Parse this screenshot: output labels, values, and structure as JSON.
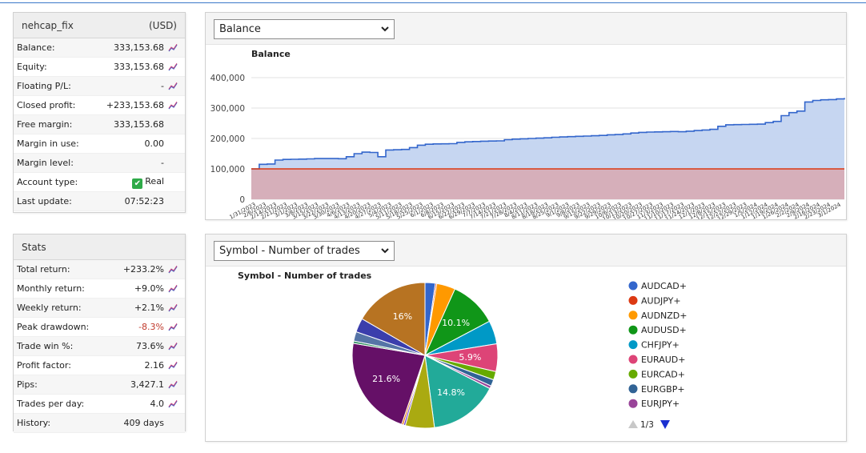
{
  "account": {
    "name": "nehcap_fix",
    "currency": "(USD)",
    "rows": [
      {
        "label": "Balance:",
        "value": "333,153.68",
        "icon": true
      },
      {
        "label": "Equity:",
        "value": "333,153.68",
        "icon": true
      },
      {
        "label": "Floating P/L:",
        "value": "-",
        "icon": true
      },
      {
        "label": "Closed profit:",
        "value": "+233,153.68",
        "icon": true
      },
      {
        "label": "Free margin:",
        "value": "333,153.68",
        "icon": false
      },
      {
        "label": "Margin in use:",
        "value": "0.00",
        "icon": false
      },
      {
        "label": "Margin level:",
        "value": "-",
        "icon": false
      },
      {
        "label": "Account type:",
        "value": "Real",
        "icon": false,
        "check": true
      },
      {
        "label": "Last update:",
        "value": "07:52:23",
        "icon": false
      }
    ]
  },
  "stats": {
    "title": "Stats",
    "rows": [
      {
        "label": "Total return:",
        "value": "+233.2%",
        "icon": true
      },
      {
        "label": "Monthly return:",
        "value": "+9.0%",
        "icon": true
      },
      {
        "label": "Weekly return:",
        "value": "+2.1%",
        "icon": true
      },
      {
        "label": "Peak drawdown:",
        "value": "-8.3%",
        "icon": true,
        "negative": true
      },
      {
        "label": "Trade win %:",
        "value": "73.6%",
        "icon": true
      },
      {
        "label": "Profit factor:",
        "value": "2.16",
        "icon": true
      },
      {
        "label": "Pips:",
        "value": "3,427.1",
        "icon": true
      },
      {
        "label": "Trades per day:",
        "value": "4.0",
        "icon": true
      },
      {
        "label": "History:",
        "value": "409 days",
        "icon": false
      }
    ]
  },
  "balance_panel": {
    "select_value": "Balance"
  },
  "pie_panel": {
    "select_value": "Symbol - Number of trades",
    "pager": "1/3"
  },
  "colors": {
    "balance_line": "#3366cc",
    "balance_fill": "#c3d4f0",
    "deposit_line": "#dc3912",
    "deposit_fill": "#d8a8b0"
  },
  "chart_data": [
    {
      "type": "area",
      "title": "Balance",
      "xlabel": "",
      "ylabel": "",
      "ylim": [
        0,
        400000
      ],
      "y_ticks": [
        "0",
        "100,000",
        "200,000",
        "300,000",
        "400,000"
      ],
      "grid": true,
      "x_tick_labels": [
        "1/31/2023",
        "2/6/2023",
        "2/14/2023",
        "2/21/2023",
        "3/1/2023",
        "3/8/2023",
        "3/15/2023",
        "3/22/2023",
        "3/30/2023",
        "4/6/2023",
        "4/13/2023",
        "4/20/2023",
        "4/27/2023",
        "5/4/2023",
        "5/11/2023",
        "5/18/2023",
        "5/25/2023",
        "6/1/2023",
        "6/8/2023",
        "6/15/2023",
        "6/22/2023",
        "6/29/2023",
        "7/7/2023",
        "7/14/2023",
        "7/21/2023",
        "7/28/2023",
        "8/4/2023",
        "8/11/2023",
        "8/18/2023",
        "8/25/2023",
        "9/1/2023",
        "9/8/2023",
        "9/15/2023",
        "9/22/2023",
        "9/29/2023",
        "10/6/2023",
        "10/13/2023",
        "10/20/2023",
        "10/27/2023",
        "11/3/2023",
        "11/10/2023",
        "11/17/2023",
        "11/24/2023",
        "12/1/2023",
        "12/8/2023",
        "12/15/2023",
        "12/22/2023",
        "12/29/2023",
        "1/5/2024",
        "1/12/2024",
        "1/19/2024",
        "1/26/2024",
        "2/2/2024",
        "2/9/2024",
        "2/16/2024",
        "2/23/2024",
        "3/1/2024"
      ],
      "series": [
        {
          "values": [
            100000,
            115000,
            116000,
            129000,
            131000,
            131500,
            132000,
            133000,
            134000,
            134000,
            134000,
            133500,
            140000,
            150000,
            155000,
            154000,
            140000,
            162000,
            163000,
            164000,
            170000,
            178000,
            181000,
            182000,
            182500,
            183000,
            187000,
            189000,
            190000,
            191000,
            191500,
            192000,
            196000,
            198000,
            199000,
            200000,
            201000,
            202000,
            204000,
            205000,
            206000,
            207000,
            208000,
            209000,
            210000,
            212000,
            213000,
            215000,
            218000,
            220000,
            221000,
            221500,
            222000,
            223000,
            222000,
            224000,
            226000,
            228000,
            230000,
            240000,
            245000,
            245500,
            246000,
            246500,
            247000,
            252000,
            256000,
            275000,
            285000,
            290000,
            320000,
            325000,
            327000,
            328000,
            330000,
            333153.68
          ]
        },
        {
          "values": [
            100000,
            100000
          ]
        }
      ]
    },
    {
      "type": "pie",
      "title": "Symbol - Number of trades",
      "legend": [
        "AUDCAD+",
        "AUDJPY+",
        "AUDNZD+",
        "AUDUSD+",
        "CHFJPY+",
        "EURAUD+",
        "EURCAD+",
        "EURGBP+",
        "EURJPY+"
      ],
      "slices": [
        {
          "label": "AUDCAD+",
          "value": 2.2,
          "color": "#3366cc"
        },
        {
          "label": "AUDJPY+",
          "value": 0.3,
          "color": "#dc3912"
        },
        {
          "label": "AUDNZD+",
          "value": 4.0,
          "color": "#ff9900"
        },
        {
          "label": "AUDUSD+",
          "value": 10.1,
          "color": "#109618",
          "text": "10.1%"
        },
        {
          "label": "CHFJPY+",
          "value": 5.0,
          "color": "#0099c6"
        },
        {
          "label": "EURAUD+",
          "value": 5.9,
          "color": "#dd4477",
          "text": "5.9%"
        },
        {
          "label": "EURCAD+",
          "value": 1.8,
          "color": "#66aa00"
        },
        {
          "label": "EURGBP+",
          "value": 1.4,
          "color": "#316395"
        },
        {
          "label": "EURJPY+",
          "value": 0.6,
          "color": "#994499"
        },
        {
          "label": "",
          "value": 14.8,
          "color": "#22aa99",
          "text": "14.8%"
        },
        {
          "label": "",
          "value": 6.2,
          "color": "#aaaa11"
        },
        {
          "label": "",
          "value": 0.4,
          "color": "#6633cc"
        },
        {
          "label": "",
          "value": 0.4,
          "color": "#e67300"
        },
        {
          "label": "",
          "value": 21.6,
          "color": "#651067",
          "text": "21.6%"
        },
        {
          "label": "",
          "value": 0.5,
          "color": "#329262"
        },
        {
          "label": "",
          "value": 2.0,
          "color": "#5574a6"
        },
        {
          "label": "",
          "value": 3.0,
          "color": "#3b3eac"
        },
        {
          "label": "",
          "value": 16.0,
          "color": "#b77322",
          "text": "16%"
        }
      ]
    }
  ]
}
